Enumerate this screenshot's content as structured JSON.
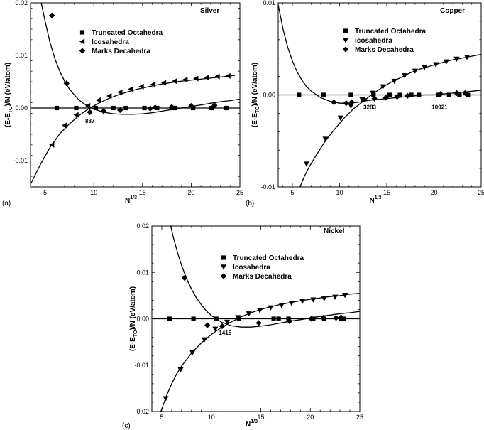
{
  "chart_data": [
    {
      "type": "line",
      "panel_label": "(a)",
      "title": "Silver",
      "xlabel_base": "N",
      "xlabel_exp": "1/3",
      "ylabel": "(E-E",
      "ylabel_sub": "TO",
      "ylabel_rest": ")/N (eV/atom)",
      "xlim": [
        3.5,
        25
      ],
      "ylim": [
        -0.015,
        0.02
      ],
      "xticks": [
        5,
        10,
        15,
        20,
        25
      ],
      "xtick_labels": [
        "5",
        "10",
        "15",
        "20",
        "25"
      ],
      "yticks": [
        -0.01,
        0,
        0.01,
        0.02
      ],
      "ytick_labels": [
        "-0.01",
        "0.00",
        "0.01",
        "0.02"
      ],
      "legend": [
        "Truncated Octahedra",
        "Icosahedra",
        "Marks Decahedra"
      ],
      "annotations": [
        {
          "text": "887",
          "x": 9.6,
          "y": -0.0024
        }
      ],
      "series": [
        {
          "name": "Truncated Octahedra",
          "marker": "square",
          "x": [
            6.2,
            8.2,
            10.2,
            12.0,
            13.3,
            15.2,
            16.5,
            18.3,
            20.2,
            22.1,
            23.6
          ],
          "y": [
            0,
            0,
            0,
            0,
            0,
            0,
            0,
            0,
            0,
            0,
            0
          ],
          "curve": {
            "x": [
              3.5,
              25
            ],
            "y": [
              0,
              0
            ]
          }
        },
        {
          "name": "Icosahedra",
          "marker": "triangle-left",
          "x": [
            5.7,
            7.0,
            8.2,
            9.4,
            10.5,
            11.6,
            12.7,
            13.8,
            14.9,
            16.1,
            17.2,
            18.3,
            19.4,
            20.5,
            21.6,
            22.7,
            23.8
          ],
          "y": [
            -0.007,
            -0.0033,
            -0.0013,
            0.0004,
            0.0015,
            0.0023,
            0.003,
            0.0036,
            0.0041,
            0.0045,
            0.0048,
            0.0051,
            0.0054,
            0.0056,
            0.0058,
            0.006,
            0.0061
          ],
          "curve": {
            "x": [
              3.5,
              4.5,
              5.5,
              6.5,
              7.5,
              8.5,
              9.5,
              10.5,
              11.5,
              12.5,
              13.5,
              14.5,
              15.5,
              16.5,
              17.5,
              18.5,
              19.5,
              20.5,
              21.5,
              22.5,
              23.5,
              24.5
            ],
            "y": [
              -0.0145,
              -0.0108,
              -0.0075,
              -0.0049,
              -0.003,
              -0.0014,
              -0.0001,
              0.0009,
              0.0018,
              0.0025,
              0.0031,
              0.0036,
              0.004,
              0.0044,
              0.0047,
              0.005,
              0.0052,
              0.0054,
              0.0056,
              0.0058,
              0.006,
              0.0062
            ]
          }
        },
        {
          "name": "Marks Decahedra",
          "marker": "diamond",
          "x": [
            5.7,
            7.2,
            9.6,
            11.0,
            12.7,
            15.8,
            16.3,
            18.0,
            20.0,
            22.4
          ],
          "y": [
            0.0176,
            0.0047,
            -0.0008,
            -0.0006,
            -0.0004,
            -0.0001,
            0.0001,
            0.0002,
            0.0004,
            0.0005
          ],
          "curve": {
            "x": [
              4.6,
              5.0,
              5.5,
              6.0,
              6.5,
              7.0,
              7.5,
              8.0,
              8.5,
              9.0,
              9.5,
              10.0,
              11.0,
              12.0,
              13.0,
              14.0,
              15.0,
              16.0,
              17.0,
              18.0,
              19.0,
              20.0,
              21.0,
              22.0,
              23.0,
              24.0,
              25.0
            ],
            "y": [
              0.02,
              0.0165,
              0.0125,
              0.0094,
              0.007,
              0.0051,
              0.0036,
              0.0025,
              0.0015,
              0.0008,
              0.0003,
              -0.0002,
              -0.0008,
              -0.0011,
              -0.0012,
              -0.0012,
              -0.0011,
              -0.0009,
              -0.0006,
              -0.0003,
              0.0,
              0.0003,
              0.0006,
              0.0009,
              0.0012,
              0.0014,
              0.0017
            ]
          }
        }
      ]
    },
    {
      "type": "line",
      "panel_label": "(b)",
      "title": "Copper",
      "xlabel_base": "N",
      "xlabel_exp": "1/3",
      "ylabel": "(E-E",
      "ylabel_sub": "TO",
      "ylabel_rest": ")/N (eV/atom)",
      "xlim": [
        3.5,
        25
      ],
      "ylim": [
        -0.01,
        0.01
      ],
      "xticks": [
        5,
        10,
        15,
        20,
        25
      ],
      "xtick_labels": [
        "5",
        "10",
        "15",
        "20",
        "25"
      ],
      "yticks": [
        -0.01,
        0,
        0.01
      ],
      "ytick_labels": [
        "-0.01",
        "0.00",
        "0.01"
      ],
      "legend": [
        "Truncated Octahedra",
        "Icosahedra",
        "Marks Decahedra"
      ],
      "annotations": [
        {
          "text": "3283",
          "x": 13.2,
          "y": -0.0013
        },
        {
          "text": "10021",
          "x": 20.6,
          "y": -0.0013
        }
      ],
      "series": [
        {
          "name": "Truncated Octahedra",
          "marker": "square",
          "x": [
            5.7,
            8.3,
            11.2,
            13.6,
            15.3,
            16.4,
            17.6,
            18.4,
            20.5,
            21.6,
            22.7,
            23.6
          ],
          "y": [
            0,
            0,
            0,
            0,
            0,
            0,
            0,
            0,
            0,
            0,
            0,
            0
          ],
          "curve": {
            "x": [
              3.5,
              25
            ],
            "y": [
              0,
              0
            ]
          }
        },
        {
          "name": "Icosahedra",
          "marker": "triangle-down",
          "x": [
            6.5,
            8.5,
            10.1,
            11.2,
            12.4,
            13.5,
            14.6,
            15.8,
            16.9,
            18.0,
            19.0,
            20.2,
            21.3,
            22.4,
            23.5
          ],
          "y": [
            -0.0075,
            -0.0048,
            -0.0025,
            -0.0012,
            -0.0005,
            0.0002,
            0.0009,
            0.0015,
            0.0021,
            0.0026,
            0.003,
            0.0033,
            0.0036,
            0.0039,
            0.0041
          ],
          "curve": {
            "x": [
              5.8,
              6.3,
              6.8,
              7.5,
              8.5,
              9.5,
              10.5,
              11.5,
              12.5,
              13.5,
              14.5,
              15.5,
              16.5,
              17.5,
              18.5,
              19.5,
              20.5,
              21.5,
              22.5,
              23.5,
              24.5,
              25.0
            ],
            "y": [
              -0.01,
              -0.0088,
              -0.0078,
              -0.0066,
              -0.005,
              -0.0037,
              -0.0025,
              -0.0015,
              -0.0007,
              0.0001,
              0.0008,
              0.0014,
              0.0019,
              0.0024,
              0.0028,
              0.0031,
              0.0034,
              0.0037,
              0.0039,
              0.0041,
              0.0043,
              0.0044
            ]
          }
        },
        {
          "name": "Marks Decahedra",
          "marker": "diamond",
          "x": [
            9.4,
            10.7,
            11.3,
            12.6,
            13.7,
            14.9,
            16.1,
            17.2,
            20.7,
            22.4,
            23.3
          ],
          "y": [
            -0.0008,
            -0.0009,
            -0.0008,
            -0.0005,
            -0.0004,
            -0.0003,
            -0.0002,
            -0.0001,
            0.0001,
            0.0002,
            0.0002
          ],
          "curve": {
            "x": [
              3.5,
              4.0,
              4.5,
              5.0,
              5.5,
              6.0,
              6.5,
              7.0,
              8.0,
              9.0,
              10.0,
              11.0,
              12.0,
              13.0,
              14.0,
              15.0,
              16.0,
              17.0,
              18.0,
              19.0,
              20.0,
              21.0,
              22.0,
              23.0,
              24.0,
              25.0
            ],
            "y": [
              0.0098,
              0.0072,
              0.0052,
              0.0037,
              0.0025,
              0.0016,
              0.0009,
              0.0004,
              -0.0003,
              -0.0007,
              -0.0009,
              -0.0009,
              -0.0008,
              -0.0006,
              -0.0005,
              -0.0004,
              -0.0003,
              -0.0002,
              -0.0001,
              0.0,
              0.0,
              0.0001,
              0.0002,
              0.0003,
              0.0004,
              0.0005
            ]
          }
        }
      ]
    },
    {
      "type": "line",
      "panel_label": "(c)",
      "title": "Nickel",
      "xlabel_base": "N",
      "xlabel_exp": "1/3",
      "ylabel": "(E-E",
      "ylabel_sub": "TO",
      "ylabel_rest": ")/N (eV/atom)",
      "xlim": [
        4,
        25
      ],
      "ylim": [
        -0.02,
        0.02
      ],
      "xticks": [
        5,
        10,
        15,
        20,
        25
      ],
      "xtick_labels": [
        "5",
        "10",
        "15",
        "20",
        "25"
      ],
      "yticks": [
        -0.02,
        -0.01,
        0,
        0.01,
        0.02
      ],
      "ytick_labels": [
        "-0.02",
        "-0.01",
        "0.00",
        "0.01",
        "0.02"
      ],
      "legend": [
        "Truncated Octahedra",
        "Icosahedra",
        "Marks Decahedra"
      ],
      "annotations": [
        {
          "text": "1415",
          "x": 11.4,
          "y": -0.003
        }
      ],
      "series": [
        {
          "name": "Truncated Octahedra",
          "marker": "square",
          "x": [
            5.8,
            8.2,
            10.5,
            12.8,
            16.3,
            16.8,
            17.8,
            20.3,
            21.4,
            23.1,
            23.4
          ],
          "y": [
            0,
            0,
            0,
            0,
            0,
            0,
            0,
            0,
            0,
            0,
            0
          ],
          "curve": {
            "x": [
              4,
              25
            ],
            "y": [
              0,
              0
            ]
          }
        },
        {
          "name": "Icosahedra",
          "marker": "triangle-down",
          "x": [
            5.4,
            6.9,
            8.1,
            9.3,
            10.4,
            11.6,
            12.7,
            13.8,
            14.9,
            16.0,
            17.1,
            18.1,
            19.2,
            20.3,
            21.4,
            22.5,
            23.5
          ],
          "y": [
            -0.0172,
            -0.011,
            -0.0073,
            -0.0045,
            -0.0022,
            -0.0007,
            0.0003,
            0.0011,
            0.0018,
            0.0024,
            0.0029,
            0.0034,
            0.0038,
            0.0041,
            0.0044,
            0.0047,
            0.0051
          ],
          "curve": {
            "x": [
              4.9,
              5.5,
              6.0,
              6.5,
              7.0,
              8.0,
              9.0,
              10.0,
              11.0,
              12.0,
              13.0,
              14.0,
              15.0,
              16.0,
              17.0,
              18.0,
              19.0,
              20.0,
              21.0,
              22.0,
              23.0,
              24.0,
              25.0
            ],
            "y": [
              -0.02,
              -0.0165,
              -0.014,
              -0.0119,
              -0.0102,
              -0.0074,
              -0.0052,
              -0.0034,
              -0.0019,
              -0.0007,
              0.0004,
              0.0013,
              0.002,
              0.0026,
              0.0031,
              0.0035,
              0.0039,
              0.0042,
              0.0045,
              0.0048,
              0.005,
              0.0053,
              0.0055
            ]
          }
        },
        {
          "name": "Marks Decahedra",
          "marker": "diamond",
          "x": [
            7.3,
            9.6,
            11.1,
            14.8,
            17.9,
            20.1,
            21.3,
            22.6,
            23.1
          ],
          "y": [
            0.0088,
            -0.0014,
            -0.0016,
            -0.0009,
            -0.0005,
            0.0,
            0.0002,
            0.0002,
            0.0003
          ],
          "curve": {
            "x": [
              5.9,
              6.2,
              6.6,
              7.0,
              7.5,
              8.0,
              8.5,
              9.0,
              9.5,
              10.0,
              11.0,
              12.0,
              13.0,
              14.0,
              15.0,
              16.0,
              17.0,
              18.0,
              19.0,
              20.0,
              21.0,
              22.0,
              23.0,
              24.0,
              25.0
            ],
            "y": [
              0.02,
              0.0173,
              0.0142,
              0.0115,
              0.0087,
              0.0064,
              0.0045,
              0.003,
              0.0017,
              0.0007,
              -0.0007,
              -0.0015,
              -0.0018,
              -0.0018,
              -0.0016,
              -0.0013,
              -0.0009,
              -0.0005,
              -0.0002,
              0.0002,
              0.0005,
              0.0008,
              0.0011,
              0.0013,
              0.0016
            ]
          }
        }
      ]
    }
  ]
}
